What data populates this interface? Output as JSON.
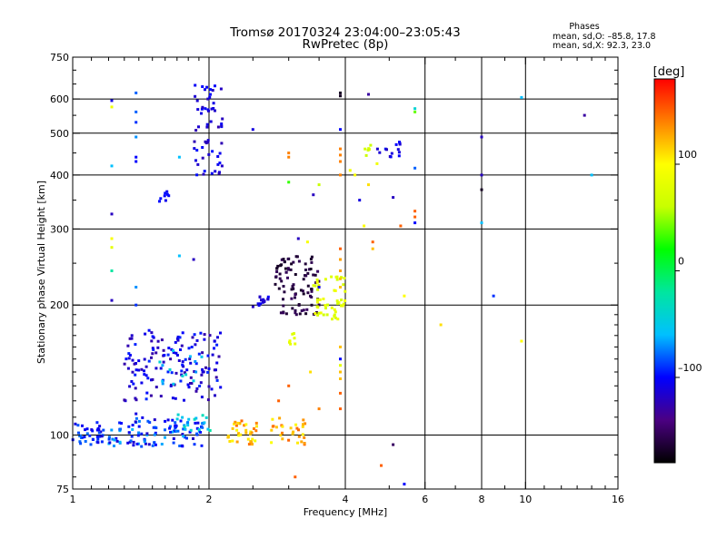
{
  "chart_data": {
    "type": "scatter",
    "title": "Tromsø 20170324 23:04:00–23:05:43",
    "subtitle": "RwPretec (8p)",
    "stats": {
      "heading": "Phases",
      "line1": "mean, sd,O: –85.8, 17.8",
      "line2": "mean, sd,X:  92.3, 23.0"
    },
    "xlabel": "Frequency [MHz]",
    "ylabel": "Stationary phase Virtual Height [km]",
    "x_scale": "log",
    "y_scale": "log",
    "xlim": [
      1,
      16
    ],
    "ylim": [
      75,
      750
    ],
    "grid": true,
    "x_ticks": [
      1,
      2,
      4,
      6,
      8,
      10,
      16
    ],
    "x_tick_labels": [
      "1",
      "2",
      "4",
      "6",
      "8",
      "10",
      "16"
    ],
    "x_minor_ticks": [
      1.1,
      1.2,
      1.3,
      1.4,
      1.5,
      1.6,
      1.7,
      1.8,
      1.9,
      2.5,
      3,
      3.5,
      5,
      7,
      9,
      11,
      12,
      13,
      14,
      15
    ],
    "x_gridlines": [
      2,
      4,
      6,
      8,
      10
    ],
    "y_ticks": [
      75,
      100,
      200,
      300,
      400,
      500,
      600,
      750
    ],
    "y_tick_labels": [
      "75",
      "100",
      "200",
      "300",
      "400",
      "500",
      "600",
      "750"
    ],
    "y_minor_ticks": [
      80,
      90,
      110,
      120,
      130,
      140,
      150,
      160,
      170,
      180,
      190,
      250,
      350,
      450,
      550,
      650,
      700
    ],
    "y_gridlines": [
      100,
      200,
      300,
      400,
      500,
      600
    ],
    "colorbar": {
      "label": "[deg]",
      "min": -180,
      "max": 180,
      "ticks": [
        100,
        0,
        -100
      ],
      "tick_labels": [
        "100",
        "0",
        "–100"
      ],
      "colormap": [
        "#000000",
        "#4b0082",
        "#0000ff",
        "#00c0ff",
        "#00e6a0",
        "#00ff00",
        "#c8ff00",
        "#ffff00",
        "#ff8000",
        "#ff0000"
      ]
    },
    "clusters": [
      {
        "f": [
          1.0,
          1.17
        ],
        "h": [
          94,
          107
        ],
        "phase": [
          -115,
          -70
        ],
        "n": 38
      },
      {
        "f": [
          1.2,
          1.95
        ],
        "h": [
          94,
          110
        ],
        "phase": [
          -120,
          -60
        ],
        "n": 110
      },
      {
        "f": [
          1.7,
          2.05
        ],
        "h": [
          100,
          112
        ],
        "phase": [
          -60,
          -20
        ],
        "n": 14
      },
      {
        "f": [
          2.2,
          2.55
        ],
        "h": [
          95,
          108
        ],
        "phase": [
          90,
          150
        ],
        "n": 36
      },
      {
        "f": [
          2.7,
          3.3
        ],
        "h": [
          95,
          110
        ],
        "phase": [
          90,
          150
        ],
        "n": 30
      },
      {
        "f": [
          1.3,
          2.15
        ],
        "h": [
          120,
          175
        ],
        "phase": [
          -130,
          -90
        ],
        "n": 150
      },
      {
        "f": [
          1.55,
          1.95
        ],
        "h": [
          130,
          160
        ],
        "phase": [
          -70,
          -40
        ],
        "n": 14
      },
      {
        "f": [
          2.8,
          3.5
        ],
        "h": [
          190,
          260
        ],
        "phase": [
          -170,
          -150
        ],
        "n": 90
      },
      {
        "f": [
          2.5,
          2.75
        ],
        "h": [
          198,
          210
        ],
        "phase": [
          -125,
          -100
        ],
        "n": 14
      },
      {
        "f": [
          3.4,
          4.0
        ],
        "h": [
          185,
          235
        ],
        "phase": [
          65,
          95
        ],
        "n": 50
      },
      {
        "f": [
          1.85,
          2.15
        ],
        "h": [
          400,
          650
        ],
        "phase": [
          -125,
          -95
        ],
        "n": 60
      },
      {
        "f": [
          1.55,
          1.65
        ],
        "h": [
          345,
          370
        ],
        "phase": [
          -110,
          -95
        ],
        "n": 8
      },
      {
        "f": [
          4.7,
          5.35
        ],
        "h": [
          440,
          480
        ],
        "phase": [
          -125,
          -95
        ],
        "n": 14
      },
      {
        "f": [
          4.3,
          4.6
        ],
        "h": [
          440,
          480
        ],
        "phase": [
          60,
          85
        ],
        "n": 6
      },
      {
        "f": [
          3.0,
          3.1
        ],
        "h": [
          160,
          172
        ],
        "phase": [
          75,
          90
        ],
        "n": 7
      }
    ],
    "points": [
      [
        1.22,
        595,
        -110
      ],
      [
        1.22,
        575,
        90
      ],
      [
        1.22,
        420,
        -60
      ],
      [
        1.22,
        325,
        -120
      ],
      [
        1.22,
        285,
        95
      ],
      [
        1.22,
        272,
        80
      ],
      [
        1.22,
        240,
        -20
      ],
      [
        1.22,
        205,
        -120
      ],
      [
        1.38,
        620,
        -80
      ],
      [
        1.38,
        560,
        -80
      ],
      [
        1.38,
        530,
        -90
      ],
      [
        1.38,
        490,
        -70
      ],
      [
        1.38,
        440,
        -100
      ],
      [
        1.38,
        430,
        -100
      ],
      [
        1.38,
        220,
        -70
      ],
      [
        1.38,
        200,
        -90
      ],
      [
        1.38,
        112,
        -110
      ],
      [
        1.72,
        440,
        -60
      ],
      [
        1.72,
        260,
        -60
      ],
      [
        1.85,
        255,
        -120
      ],
      [
        2.5,
        510,
        -110
      ],
      [
        3.0,
        450,
        140
      ],
      [
        3.0,
        440,
        140
      ],
      [
        3.0,
        385,
        30
      ],
      [
        3.15,
        285,
        -120
      ],
      [
        3.5,
        380,
        60
      ],
      [
        3.5,
        220,
        -110
      ],
      [
        3.5,
        115,
        140
      ],
      [
        3.3,
        280,
        95
      ],
      [
        3.4,
        360,
        -120
      ],
      [
        3.9,
        620,
        -170
      ],
      [
        3.9,
        610,
        -170
      ],
      [
        3.9,
        510,
        -100
      ],
      [
        3.9,
        460,
        140
      ],
      [
        3.9,
        445,
        140
      ],
      [
        3.9,
        430,
        140
      ],
      [
        3.9,
        400,
        140
      ],
      [
        3.9,
        270,
        150
      ],
      [
        3.9,
        255,
        130
      ],
      [
        3.9,
        240,
        130
      ],
      [
        3.9,
        230,
        120
      ],
      [
        3.9,
        220,
        120
      ],
      [
        3.9,
        160,
        120
      ],
      [
        3.9,
        150,
        -100
      ],
      [
        3.9,
        145,
        80
      ],
      [
        3.9,
        140,
        120
      ],
      [
        3.9,
        135,
        120
      ],
      [
        3.9,
        125,
        150
      ],
      [
        3.9,
        115,
        150
      ],
      [
        4.1,
        410,
        90
      ],
      [
        4.2,
        400,
        95
      ],
      [
        4.3,
        350,
        -110
      ],
      [
        4.4,
        305,
        100
      ],
      [
        4.5,
        615,
        -130
      ],
      [
        4.5,
        380,
        110
      ],
      [
        4.6,
        280,
        150
      ],
      [
        4.6,
        270,
        120
      ],
      [
        4.7,
        425,
        90
      ],
      [
        4.8,
        85,
        150
      ],
      [
        5.1,
        355,
        -120
      ],
      [
        5.1,
        95,
        -150
      ],
      [
        5.3,
        305,
        150
      ],
      [
        5.4,
        210,
        100
      ],
      [
        5.4,
        77,
        -100
      ],
      [
        5.7,
        570,
        -40
      ],
      [
        5.7,
        560,
        40
      ],
      [
        5.7,
        415,
        -80
      ],
      [
        5.7,
        330,
        150
      ],
      [
        5.7,
        320,
        150
      ],
      [
        5.7,
        310,
        -100
      ],
      [
        3.0,
        130,
        150
      ],
      [
        3.1,
        80,
        150
      ],
      [
        2.85,
        120,
        150
      ],
      [
        3.35,
        140,
        110
      ],
      [
        6.5,
        180,
        110
      ],
      [
        8.0,
        490,
        -120
      ],
      [
        8.0,
        400,
        -120
      ],
      [
        8.0,
        370,
        -170
      ],
      [
        8.0,
        310,
        -60
      ],
      [
        8.5,
        210,
        -90
      ],
      [
        9.8,
        605,
        -60
      ],
      [
        9.8,
        165,
        100
      ],
      [
        13.5,
        550,
        -130
      ],
      [
        14.0,
        400,
        -60
      ]
    ]
  }
}
